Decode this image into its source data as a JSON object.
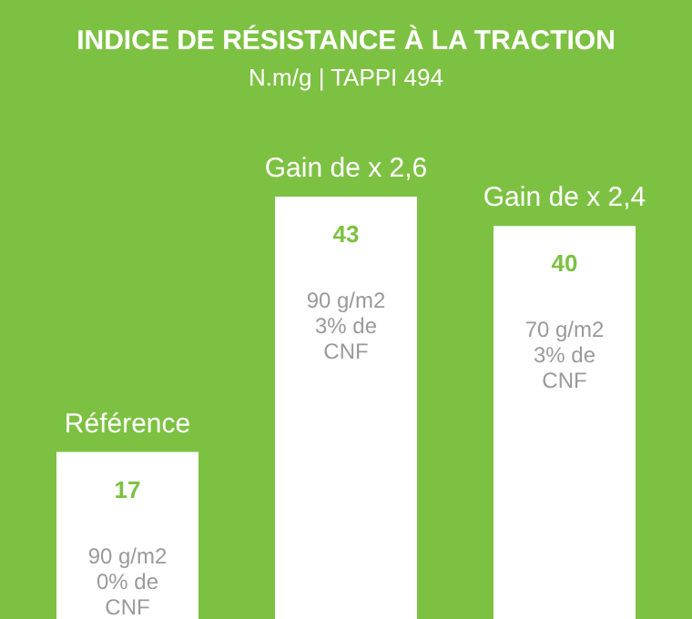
{
  "chart_data": {
    "type": "bar",
    "title": "INDICE DE RÉSISTANCE À LA TRACTION",
    "subtitle": "N.m/g | TAPPI 494",
    "categories": [
      "Référence",
      "Gain de x 2,6",
      "Gain de x 2,4"
    ],
    "values": [
      17,
      43,
      40
    ],
    "color": "#ffffff",
    "data_labels": true,
    "annotations": [
      "90 g/m2\n0% de\nCNF",
      "90 g/m2\n3% de\nCNF",
      "70 g/m2\n3% de\nCNF"
    ]
  }
}
